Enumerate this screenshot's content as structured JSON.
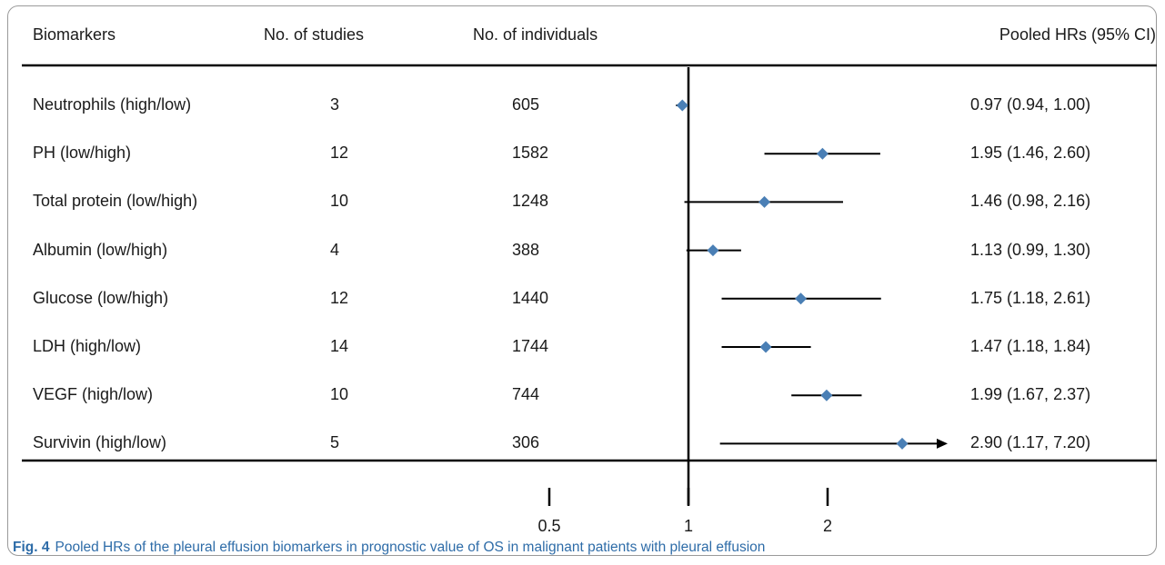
{
  "header": {
    "biomarkers": "Biomarkers",
    "studies": "No. of studies",
    "individuals": "No. of individuals",
    "hr": "Pooled HRs (95% CI)"
  },
  "rows": [
    {
      "name": "Neutrophils (high/low)",
      "studies": "3",
      "individuals": "605",
      "hr_text": "0.97 (0.94, 1.00)"
    },
    {
      "name": "PH (low/high)",
      "studies": "12",
      "individuals": "1582",
      "hr_text": "1.95 (1.46, 2.60)"
    },
    {
      "name": "Total protein (low/high)",
      "studies": "10",
      "individuals": "1248",
      "hr_text": "1.46 (0.98, 2.16)"
    },
    {
      "name": "Albumin (low/high)",
      "studies": "4",
      "individuals": "388",
      "hr_text": "1.13 (0.99, 1.30)"
    },
    {
      "name": "Glucose (low/high)",
      "studies": "12",
      "individuals": "1440",
      "hr_text": "1.75 (1.18, 2.61)"
    },
    {
      "name": "LDH (high/low)",
      "studies": "14",
      "individuals": "1744",
      "hr_text": "1.47 (1.18, 1.84)"
    },
    {
      "name": "VEGF (high/low)",
      "studies": "10",
      "individuals": "744",
      "hr_text": "1.99 (1.67, 2.37)"
    },
    {
      "name": "Survivin (high/low)",
      "studies": "5",
      "individuals": "306",
      "hr_text": "2.90 (1.17, 7.20)"
    }
  ],
  "chart_data": {
    "type": "scatter",
    "categories": [
      "Neutrophils (high/low)",
      "PH (low/high)",
      "Total protein (low/high)",
      "Albumin (low/high)",
      "Glucose (low/high)",
      "LDH (high/low)",
      "VEGF (high/low)",
      "Survivin (high/low)"
    ],
    "series": [
      {
        "hr": [
          0.97,
          1.95,
          1.46,
          1.13,
          1.75,
          1.47,
          1.99,
          2.9
        ],
        "lower": [
          0.94,
          1.46,
          0.98,
          0.99,
          1.18,
          1.18,
          1.67,
          1.17
        ],
        "upper": [
          1.0,
          2.6,
          2.16,
          1.3,
          2.61,
          1.84,
          2.37,
          7.2
        ]
      }
    ],
    "x_ticks": [
      "0.5",
      "1",
      "2"
    ],
    "x_scale": "log",
    "reference_line": 1,
    "grid": false,
    "marker_color": "#4a7fb5",
    "line_color": "#000000"
  },
  "caption": {
    "label": "Fig. 4",
    "text": "Pooled HRs of the pleural effusion biomarkers in prognostic value of OS in malignant patients with pleural effusion"
  }
}
